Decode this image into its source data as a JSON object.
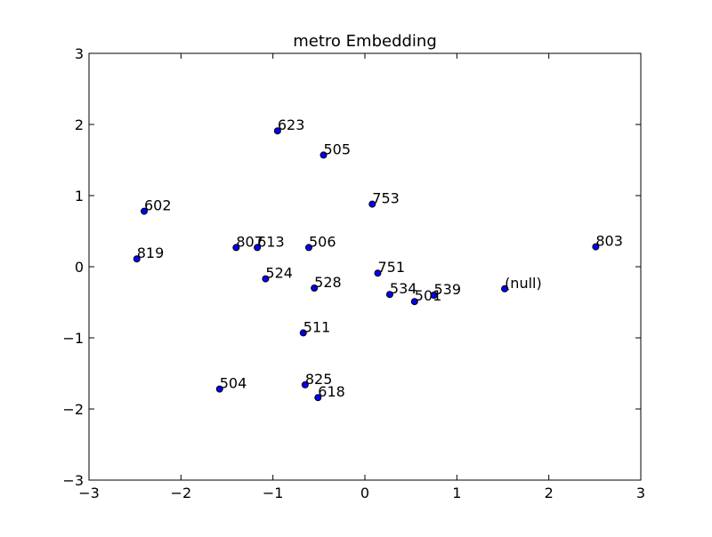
{
  "chart_data": {
    "type": "scatter",
    "title": "metro Embedding",
    "xlabel": "",
    "ylabel": "",
    "xlim": [
      -3,
      3
    ],
    "ylim": [
      -3,
      3
    ],
    "xticks": [
      -3,
      -2,
      -1,
      0,
      1,
      2,
      3
    ],
    "yticks": [
      -3,
      -2,
      -1,
      0,
      1,
      2,
      3
    ],
    "xtick_labels": [
      "−3",
      "−2",
      "−1",
      "0",
      "1",
      "2",
      "3"
    ],
    "ytick_labels": [
      "−3",
      "−2",
      "−1",
      "0",
      "1",
      "2",
      "3"
    ],
    "grid": false,
    "marker_color": "#0000ff",
    "marker_edge_color": "#000000",
    "points": [
      {
        "label": "623",
        "x": -0.95,
        "y": 1.91
      },
      {
        "label": "505",
        "x": -0.45,
        "y": 1.57
      },
      {
        "label": "753",
        "x": 0.08,
        "y": 0.88
      },
      {
        "label": "602",
        "x": -2.4,
        "y": 0.78
      },
      {
        "label": "807",
        "x": -1.4,
        "y": 0.27
      },
      {
        "label": "613",
        "x": -1.17,
        "y": 0.27
      },
      {
        "label": "506",
        "x": -0.61,
        "y": 0.27
      },
      {
        "label": "803",
        "x": 2.51,
        "y": 0.28
      },
      {
        "label": "819",
        "x": -2.48,
        "y": 0.11
      },
      {
        "label": "751",
        "x": 0.14,
        "y": -0.09
      },
      {
        "label": "524",
        "x": -1.08,
        "y": -0.17
      },
      {
        "label": "528",
        "x": -0.55,
        "y": -0.3
      },
      {
        "label": "534",
        "x": 0.27,
        "y": -0.39
      },
      {
        "label": "539",
        "x": 0.75,
        "y": -0.4
      },
      {
        "label": "501",
        "x": 0.54,
        "y": -0.49
      },
      {
        "label": "(null)",
        "x": 1.52,
        "y": -0.31
      },
      {
        "label": "511",
        "x": -0.67,
        "y": -0.93
      },
      {
        "label": "825",
        "x": -0.65,
        "y": -1.66
      },
      {
        "label": "618",
        "x": -0.51,
        "y": -1.84
      },
      {
        "label": "504",
        "x": -1.58,
        "y": -1.72
      }
    ]
  }
}
